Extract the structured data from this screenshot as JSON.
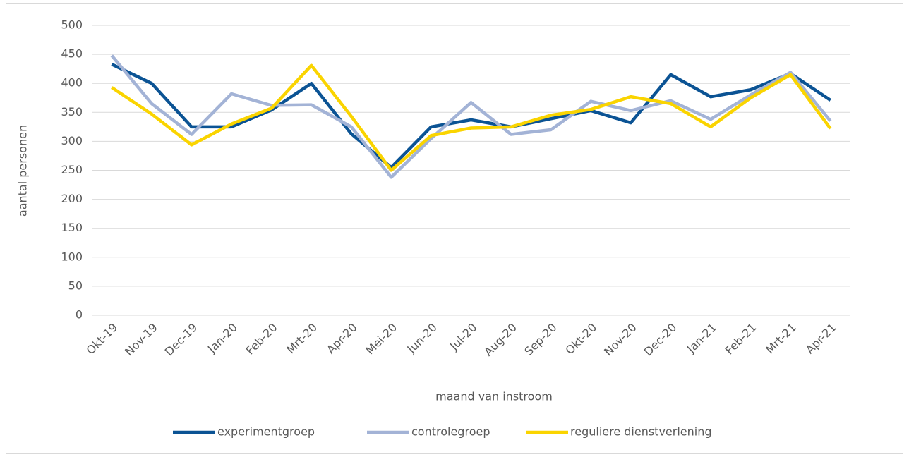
{
  "chart_data": {
    "type": "line",
    "x_label": "maand van instroom",
    "y_label": "aantal personen",
    "categories": [
      "Okt-19",
      "Nov-19",
      "Dec-19",
      "Jan-20",
      "Feb-20",
      "Mrt-20",
      "Apr-20",
      "Mei-20",
      "Jun-20",
      "Jul-20",
      "Aug-20",
      "Sep-20",
      "Okt-20",
      "Nov-20",
      "Dec-20",
      "Jan-21",
      "Feb-21",
      "Mrt-21",
      "Apr-21"
    ],
    "series": [
      {
        "name": "experimentgroep",
        "color": "#0b5394",
        "values": [
          433,
          400,
          325,
          325,
          354,
          400,
          313,
          255,
          325,
          337,
          325,
          339,
          353,
          332,
          415,
          377,
          389,
          417,
          371
        ]
      },
      {
        "name": "controlegroep",
        "color": "#a3b3d6",
        "values": [
          448,
          365,
          312,
          382,
          362,
          363,
          325,
          238,
          305,
          367,
          312,
          320,
          369,
          353,
          370,
          338,
          380,
          419,
          335
        ]
      },
      {
        "name": "reguliere dienstverlening",
        "color": "#fad400",
        "values": [
          393,
          347,
          294,
          330,
          357,
          431,
          343,
          250,
          310,
          323,
          325,
          345,
          355,
          377,
          365,
          325,
          375,
          415,
          322
        ]
      }
    ],
    "ylim": [
      0,
      500
    ],
    "yticks": [
      0,
      50,
      100,
      150,
      200,
      250,
      300,
      350,
      400,
      450,
      500
    ],
    "grid": true,
    "legend": "bottom"
  }
}
